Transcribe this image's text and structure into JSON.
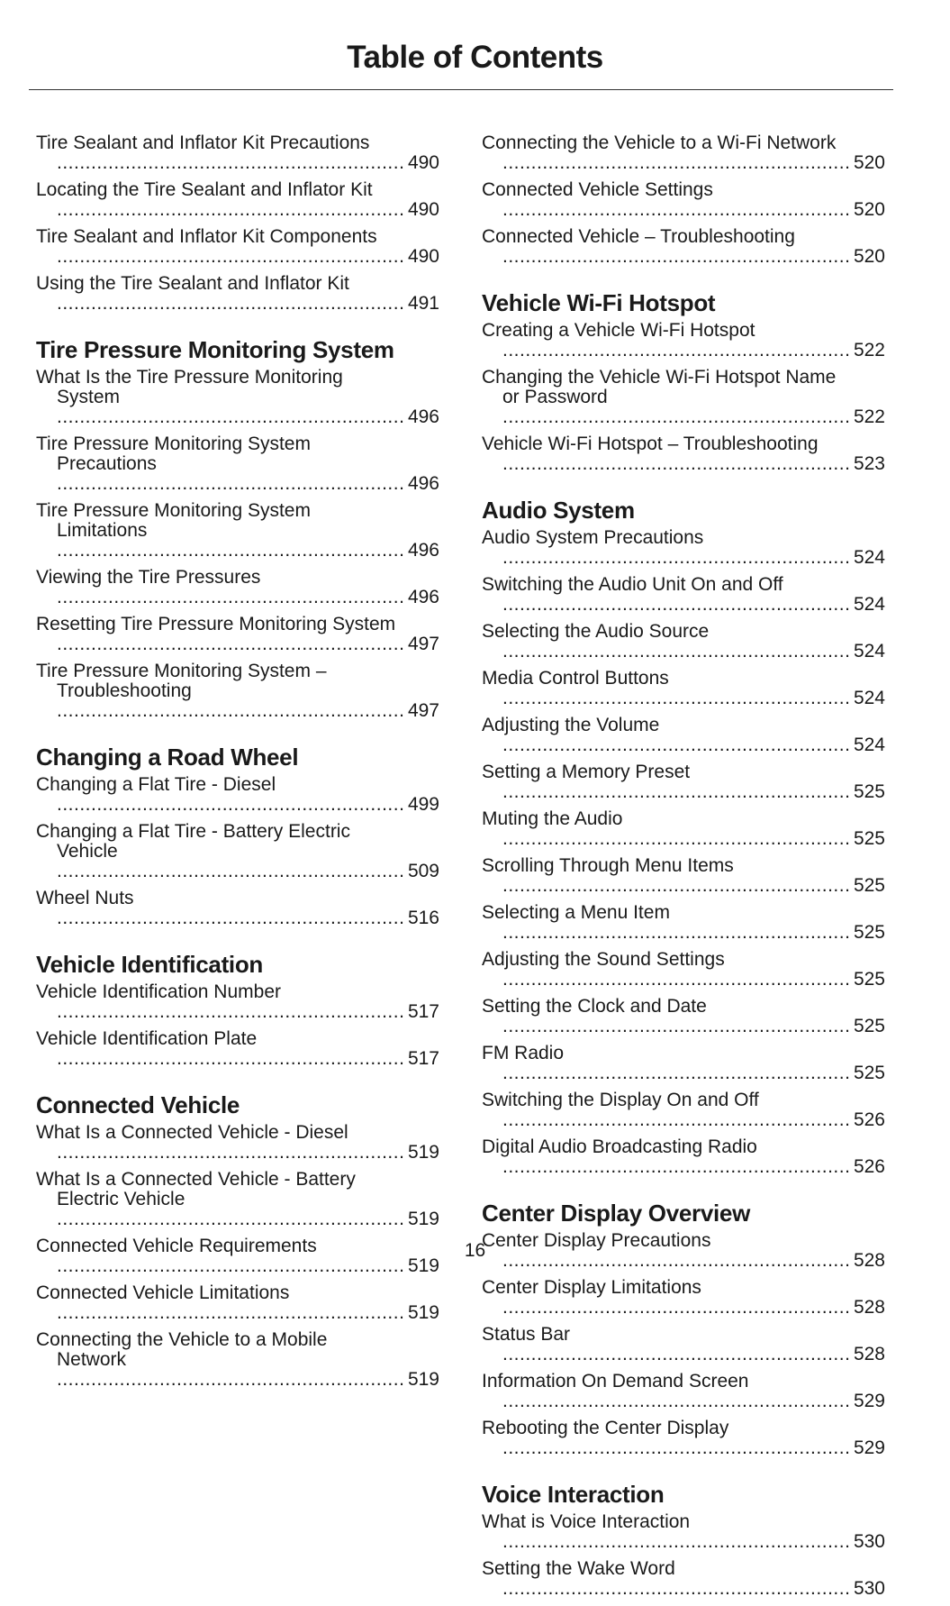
{
  "header": {
    "title": "Table of Contents"
  },
  "columns": [
    {
      "sections": [
        {
          "entries": [
            {
              "title": "Tire Sealant and Inflator Kit Precautions",
              "page": 490
            },
            {
              "title": "Locating the Tire Sealant and Inflator Kit",
              "page": 490
            },
            {
              "title": "Tire Sealant and Inflator Kit Components",
              "page": 490
            },
            {
              "title": "Using the Tire Sealant and Inflator Kit",
              "page": 491
            }
          ]
        },
        {
          "heading": "Tire Pressure Monitoring System",
          "entries": [
            {
              "title": "What Is the Tire Pressure Monitoring System",
              "page": 496
            },
            {
              "title": "Tire Pressure Monitoring System Precautions",
              "page": 496
            },
            {
              "title": "Tire Pressure Monitoring System Limitations",
              "page": 496
            },
            {
              "title": "Viewing the Tire Pressures",
              "page": 496
            },
            {
              "title": "Resetting Tire Pressure Monitoring System",
              "page": 497
            },
            {
              "title": "Tire Pressure Monitoring System – Troubleshooting",
              "page": 497
            }
          ]
        },
        {
          "heading": "Changing a Road Wheel",
          "entries": [
            {
              "title": "Changing a Flat Tire - Diesel",
              "page": 499
            },
            {
              "title": "Changing a Flat Tire - Battery Electric Vehicle",
              "page": 509
            },
            {
              "title": "Wheel Nuts",
              "page": 516
            }
          ]
        },
        {
          "heading": "Vehicle Identification",
          "entries": [
            {
              "title": "Vehicle Identification Number",
              "page": 517
            },
            {
              "title": "Vehicle Identification Plate",
              "page": 517
            }
          ]
        },
        {
          "heading": "Connected Vehicle",
          "entries": [
            {
              "title": "What Is a Connected Vehicle - Diesel",
              "page": 519
            },
            {
              "title": "What Is a Connected Vehicle - Battery Electric Vehicle",
              "page": 519
            },
            {
              "title": "Connected Vehicle Requirements",
              "page": 519
            },
            {
              "title": "Connected Vehicle Limitations",
              "page": 519
            },
            {
              "title": "Connecting the Vehicle to a Mobile Network",
              "page": 519
            }
          ]
        }
      ]
    },
    {
      "sections": [
        {
          "entries": [
            {
              "title": "Connecting the Vehicle to a Wi-Fi Network",
              "page": 520
            },
            {
              "title": "Connected Vehicle Settings",
              "page": 520
            },
            {
              "title": "Connected Vehicle – Troubleshooting",
              "page": 520
            }
          ]
        },
        {
          "heading": "Vehicle Wi-Fi Hotspot",
          "entries": [
            {
              "title": "Creating a Vehicle Wi-Fi Hotspot",
              "page": 522
            },
            {
              "title": "Changing the Vehicle Wi-Fi Hotspot Name or Password",
              "page": 522
            },
            {
              "title": "Vehicle Wi-Fi Hotspot – Troubleshooting",
              "page": 523
            }
          ]
        },
        {
          "heading": "Audio System",
          "entries": [
            {
              "title": "Audio System Precautions",
              "page": 524
            },
            {
              "title": "Switching the Audio Unit On and Off",
              "page": 524
            },
            {
              "title": "Selecting the Audio Source",
              "page": 524
            },
            {
              "title": "Media Control Buttons",
              "page": 524
            },
            {
              "title": "Adjusting the Volume",
              "page": 524
            },
            {
              "title": "Setting a Memory Preset",
              "page": 525
            },
            {
              "title": "Muting the Audio",
              "page": 525
            },
            {
              "title": "Scrolling Through Menu Items",
              "page": 525
            },
            {
              "title": "Selecting a Menu Item",
              "page": 525
            },
            {
              "title": "Adjusting the Sound Settings",
              "page": 525
            },
            {
              "title": "Setting the Clock and Date",
              "page": 525
            },
            {
              "title": "FM Radio",
              "page": 525
            },
            {
              "title": "Switching the Display On and Off",
              "page": 526
            },
            {
              "title": "Digital Audio Broadcasting Radio",
              "page": 526
            }
          ]
        },
        {
          "heading": "Center Display Overview",
          "entries": [
            {
              "title": "Center Display Precautions",
              "page": 528
            },
            {
              "title": "Center Display Limitations",
              "page": 528
            },
            {
              "title": "Status Bar",
              "page": 528
            },
            {
              "title": "Information On Demand Screen",
              "page": 529
            },
            {
              "title": "Rebooting the Center Display",
              "page": 529
            }
          ]
        },
        {
          "heading": "Voice Interaction",
          "entries": [
            {
              "title": "What is Voice Interaction",
              "page": 530
            },
            {
              "title": "Setting the Wake Word",
              "page": 530
            }
          ]
        }
      ]
    }
  ],
  "footer": {
    "page_number": "16"
  }
}
